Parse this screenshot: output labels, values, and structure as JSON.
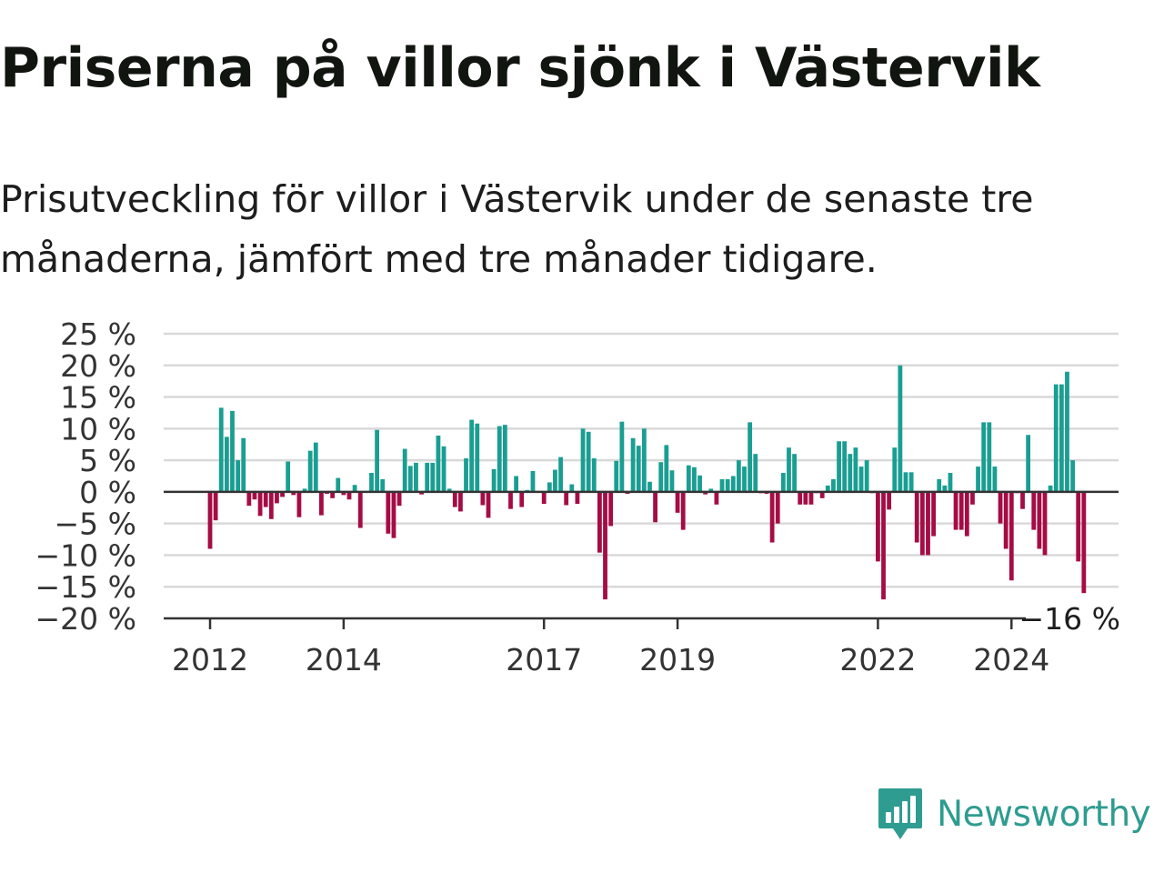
{
  "header": {
    "title": "Priserna på villor sjönk i Västervik",
    "subtitle": "Prisutveckling för villor i Västervik under de senaste tre månaderna, jämfört med tre månader tidigare."
  },
  "brand": {
    "name": "Newsworthy",
    "color": "#2e9c90"
  },
  "colors": {
    "positive": "#1a9e92",
    "negative": "#a50c45",
    "grid": "#d9d9d9",
    "axis": "#333333"
  },
  "chart_data": {
    "type": "bar",
    "x_start": "2012-01",
    "x_step": "month",
    "values": [
      -9,
      -4.5,
      13.3,
      8.7,
      12.8,
      5,
      8.5,
      -2.2,
      -1.2,
      -3.8,
      -2.4,
      -4.3,
      -1.8,
      -0.8,
      4.8,
      -0.5,
      -4,
      0.5,
      6.5,
      7.8,
      -3.7,
      -0.3,
      -1,
      2.2,
      -0.5,
      -1.2,
      1.1,
      -5.7,
      0.1,
      3,
      9.8,
      2,
      -6.6,
      -7.3,
      -2.2,
      6.8,
      4.1,
      4.6,
      -0.4,
      4.6,
      4.6,
      8.9,
      7.2,
      0.5,
      -2.4,
      -3.1,
      5.3,
      11.4,
      10.8,
      -2.1,
      -4.1,
      3.6,
      10.4,
      10.6,
      -2.7,
      2.5,
      -2.4,
      0.3,
      3.3,
      -0.1,
      -1.9,
      1.5,
      3.5,
      5.5,
      -2.1,
      1.2,
      -1.9,
      10,
      9.5,
      5.3,
      -9.6,
      -17,
      -5.4,
      4.9,
      11.1,
      -0.3,
      8.5,
      7.3,
      10,
      1.6,
      -4.8,
      4.7,
      7.4,
      3.4,
      -3.3,
      -6,
      4.2,
      3.9,
      2.6,
      -0.4,
      0.5,
      -2,
      2,
      2,
      2.5,
      5,
      4,
      11,
      6,
      -0.2,
      -0.3,
      -8,
      -5,
      3,
      7,
      6,
      -2,
      -2,
      -2,
      -0.2,
      -1,
      1,
      2,
      8,
      8,
      6,
      7,
      4,
      5,
      -0.2,
      -11,
      -17,
      -2.8,
      7,
      20,
      3.1,
      3.1,
      -8,
      -10,
      -10,
      -7,
      2,
      1,
      3,
      -6,
      -6,
      -7,
      -2,
      4,
      11,
      11,
      4,
      -5,
      -9,
      -14,
      -0.2,
      -2.7,
      9,
      -6,
      -9,
      -10,
      1,
      17,
      17,
      19,
      5,
      -11,
      -16
    ],
    "ylim": [
      -20,
      25
    ],
    "yticks": [
      25,
      20,
      15,
      10,
      5,
      0,
      -5,
      -10,
      -15,
      -20
    ],
    "ytick_labels": [
      "25 %",
      "20 %",
      "15 %",
      "10 %",
      "5 %",
      "0 %",
      "−5 %",
      "−10 %",
      "−15 %",
      "−20 %"
    ],
    "xticks": [
      {
        "date": "2012-01",
        "label": "2012"
      },
      {
        "date": "2014-01",
        "label": "2014"
      },
      {
        "date": "2017-01",
        "label": "2017"
      },
      {
        "date": "2019-01",
        "label": "2019"
      },
      {
        "date": "2022-01",
        "label": "2022"
      },
      {
        "date": "2024-01",
        "label": "2024"
      }
    ],
    "annotation": "−16 %",
    "grid": true
  }
}
